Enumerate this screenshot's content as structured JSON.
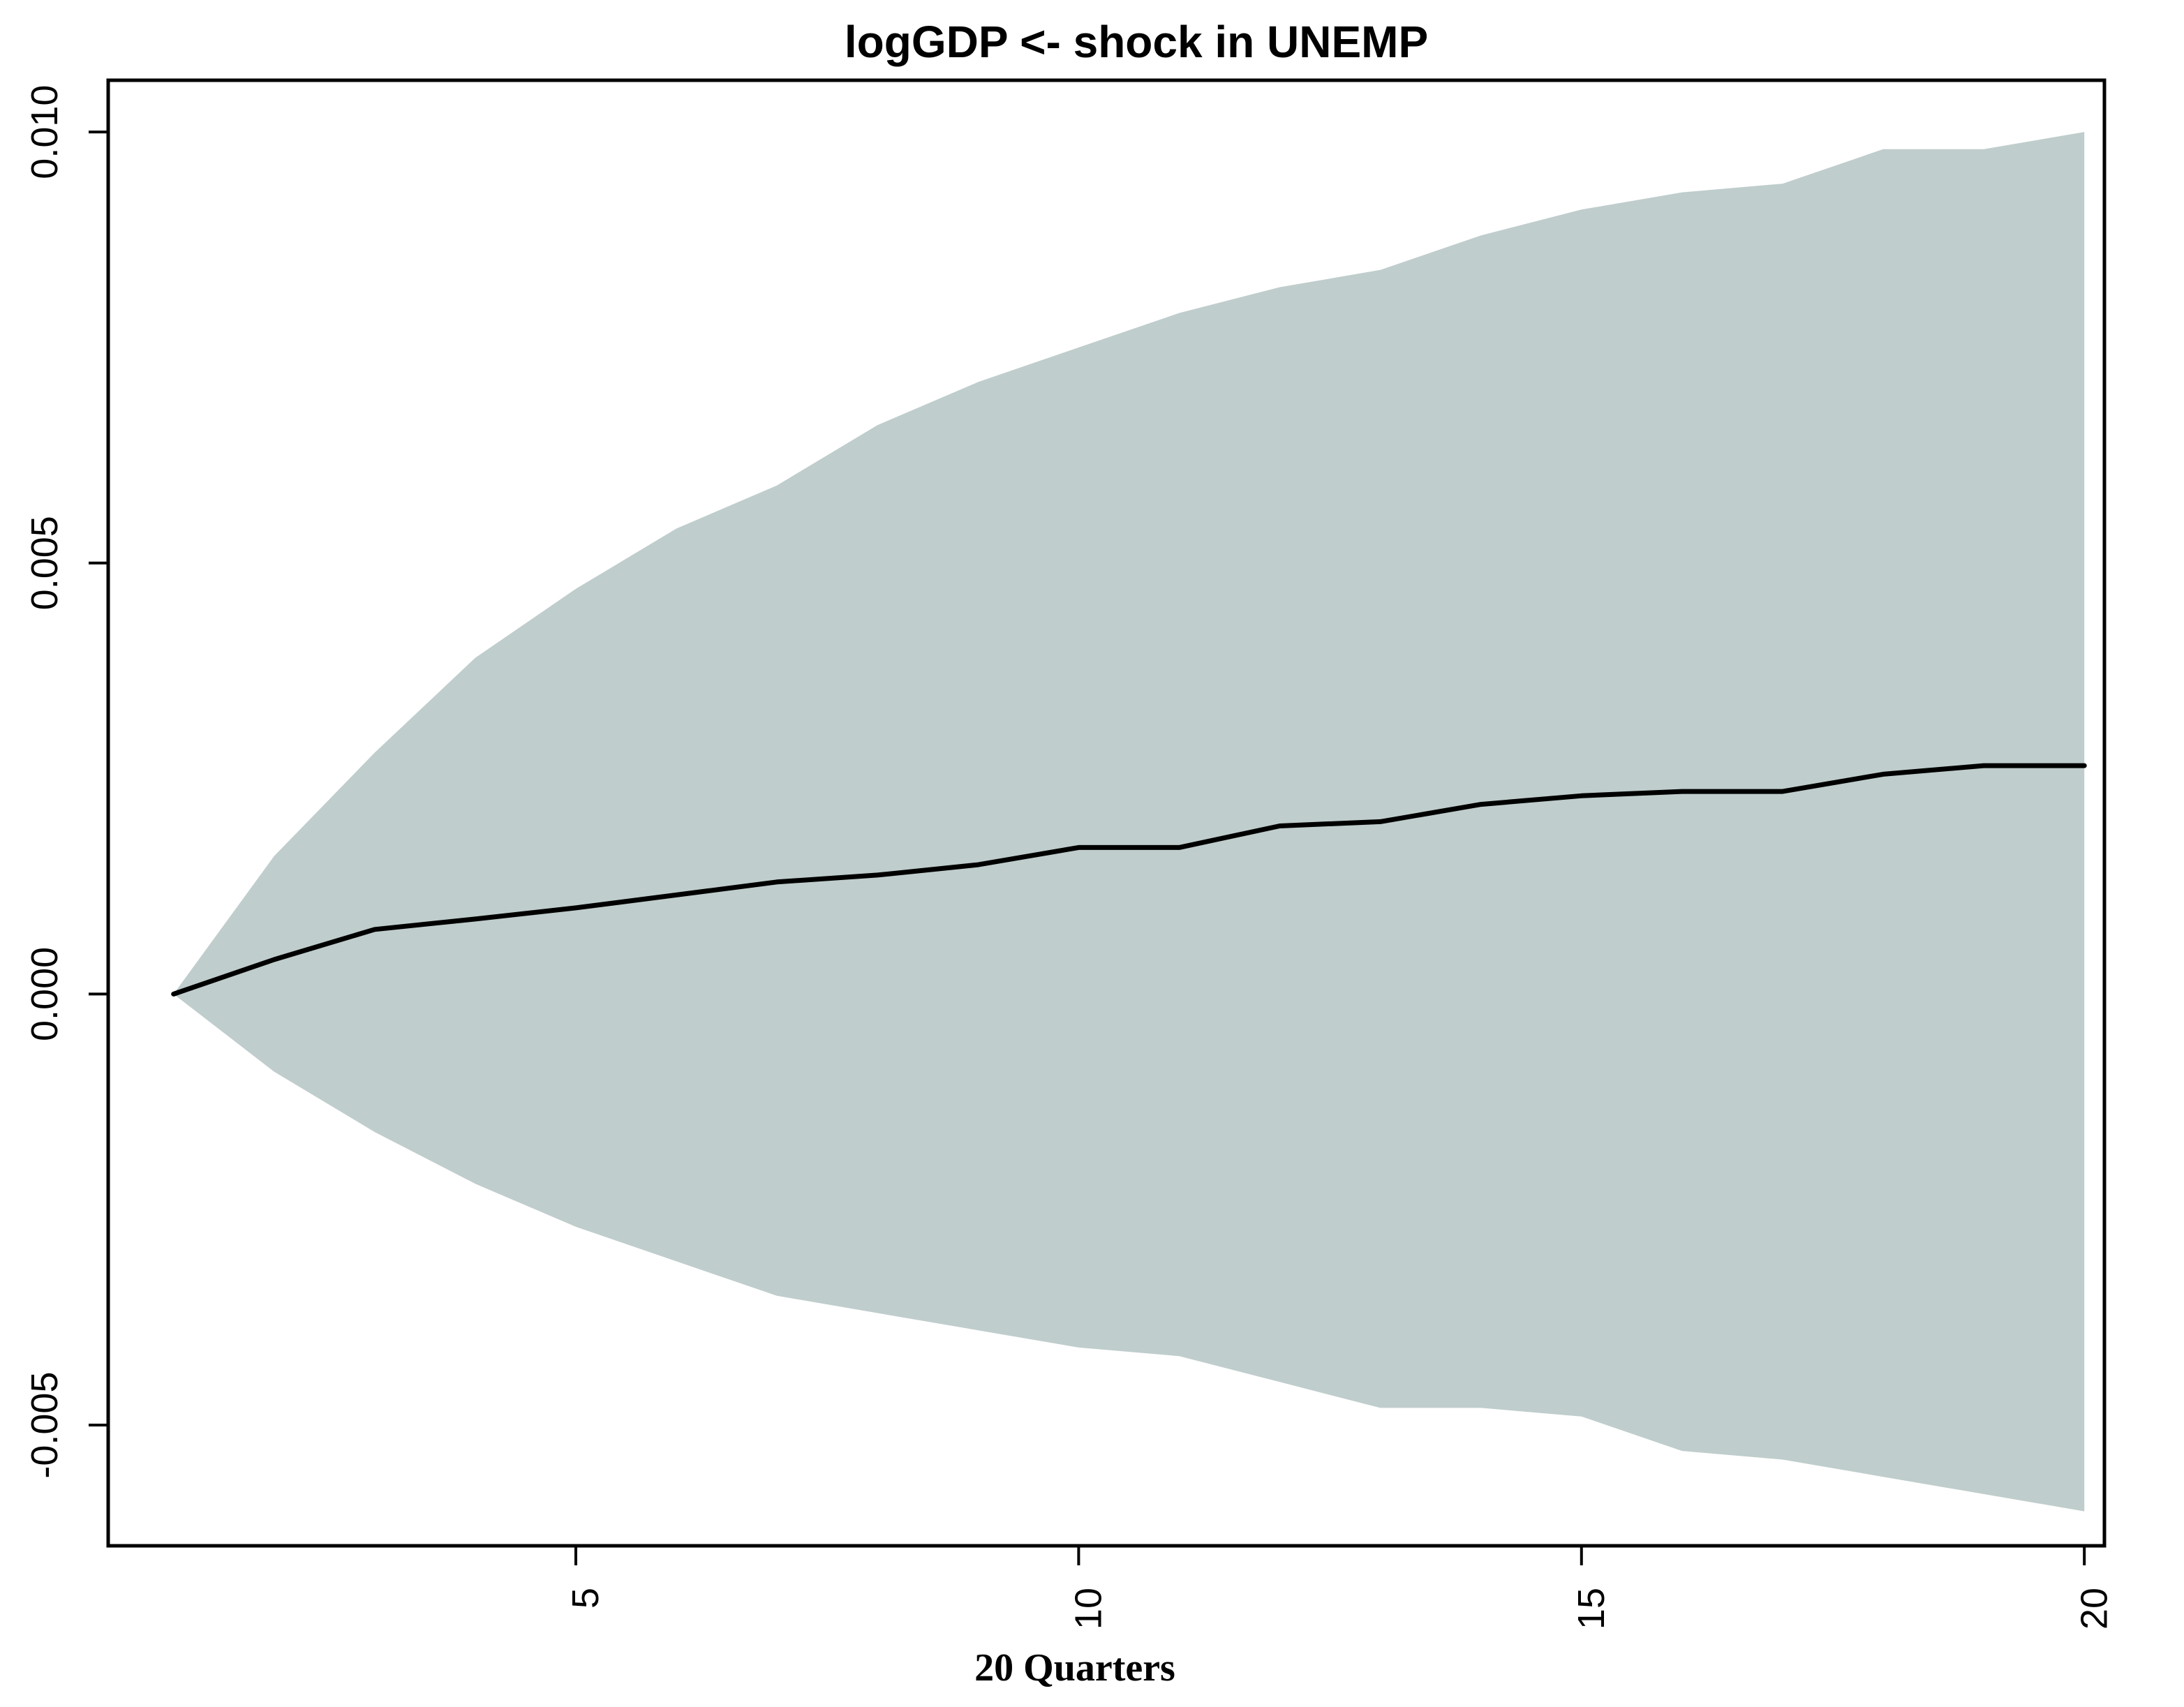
{
  "chart_data": {
    "type": "area",
    "title": "logGDP <- shock in UNEMP",
    "xlabel": "20 Quarters",
    "ylabel": "",
    "x": [
      1,
      2,
      3,
      4,
      5,
      6,
      7,
      8,
      9,
      10,
      11,
      12,
      13,
      14,
      15,
      16,
      17,
      18,
      19,
      20
    ],
    "xticks": [
      "5",
      "10",
      "15",
      "20"
    ],
    "yticks": [
      "-0.005",
      "0.000",
      "0.005",
      "0.010"
    ],
    "xlim": [
      0.35,
      20.2
    ],
    "ylim": [
      -0.0064,
      0.0106
    ],
    "grid": false,
    "legend": "none",
    "series": [
      {
        "role": "confidence_band",
        "upper": [
          0.0,
          0.0016,
          0.0028,
          0.0039,
          0.0047,
          0.0054,
          0.0059,
          0.0066,
          0.0071,
          0.0075,
          0.0079,
          0.0082,
          0.0084,
          0.0088,
          0.0091,
          0.0093,
          0.0094,
          0.0098,
          0.0098,
          0.01
        ],
        "lower": [
          0.0,
          -0.0009,
          -0.0016,
          -0.0022,
          -0.0027,
          -0.0031,
          -0.0035,
          -0.0037,
          -0.0039,
          -0.0041,
          -0.0042,
          -0.0045,
          -0.0048,
          -0.0048,
          -0.0049,
          -0.0053,
          -0.0054,
          -0.0056,
          -0.0058,
          -0.006
        ]
      },
      {
        "role": "impulse_response",
        "values": [
          0.0,
          0.0004,
          0.00075,
          0.00087,
          0.001,
          0.00115,
          0.0013,
          0.00138,
          0.0015,
          0.0017,
          0.0017,
          0.00195,
          0.002,
          0.0022,
          0.0023,
          0.00235,
          0.00235,
          0.00255,
          0.00265,
          0.00265
        ]
      }
    ],
    "colors": {
      "band": "#bfcdcc",
      "line": "#000000",
      "axes": "#000000"
    }
  }
}
